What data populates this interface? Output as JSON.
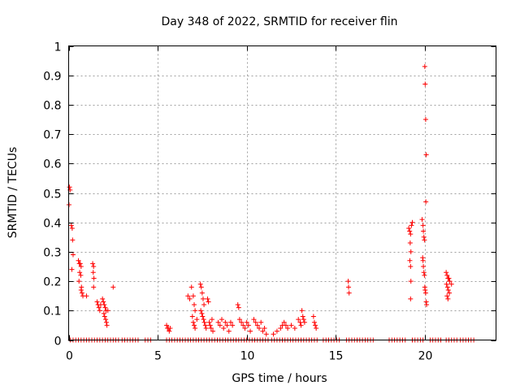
{
  "chart_data": {
    "type": "scatter",
    "title": "Day 348 of 2022, SRMTID for receiver flin",
    "xlabel": "GPS time / hours",
    "ylabel": "SRMTID / TECUs",
    "xlim": [
      0,
      24
    ],
    "ylim": [
      0,
      1
    ],
    "grid": true,
    "legend": "none",
    "marker": "plus",
    "color": "#ff0000",
    "x_ticks": [
      "0",
      "5",
      "10",
      "15",
      "20"
    ],
    "x_tick_values": [
      0,
      5,
      10,
      15,
      20
    ],
    "y_ticks": [
      "0",
      "0.1",
      "0.2",
      "0.3",
      "0.4",
      "0.5",
      "0.6",
      "0.7",
      "0.8",
      "0.9",
      "1"
    ],
    "y_tick_values": [
      0,
      0.1,
      0.2,
      0.3,
      0.4,
      0.5,
      0.6,
      0.7,
      0.8,
      0.9,
      1.0
    ],
    "series": [
      {
        "name": "SRMTID",
        "points": [
          [
            0.05,
            0.52
          ],
          [
            0.08,
            0.51
          ],
          [
            0.02,
            0.46
          ],
          [
            0.15,
            0.39
          ],
          [
            0.2,
            0.38
          ],
          [
            0.22,
            0.34
          ],
          [
            0.25,
            0.29
          ],
          [
            0.18,
            0.24
          ],
          [
            0.55,
            0.27
          ],
          [
            0.6,
            0.26
          ],
          [
            0.65,
            0.26
          ],
          [
            0.7,
            0.25
          ],
          [
            0.62,
            0.23
          ],
          [
            0.68,
            0.22
          ],
          [
            0.58,
            0.2
          ],
          [
            0.72,
            0.18
          ],
          [
            0.7,
            0.17
          ],
          [
            0.75,
            0.16
          ],
          [
            0.8,
            0.15
          ],
          [
            1.0,
            0.15
          ],
          [
            1.35,
            0.26
          ],
          [
            1.4,
            0.25
          ],
          [
            1.38,
            0.23
          ],
          [
            1.42,
            0.21
          ],
          [
            1.4,
            0.18
          ],
          [
            1.6,
            0.13
          ],
          [
            1.65,
            0.12
          ],
          [
            1.7,
            0.11
          ],
          [
            1.75,
            0.1
          ],
          [
            1.8,
            0.12
          ],
          [
            1.9,
            0.14
          ],
          [
            1.95,
            0.13
          ],
          [
            2.0,
            0.12
          ],
          [
            2.05,
            0.11
          ],
          [
            2.1,
            0.1
          ],
          [
            1.98,
            0.09
          ],
          [
            2.02,
            0.08
          ],
          [
            2.08,
            0.07
          ],
          [
            2.12,
            0.06
          ],
          [
            2.15,
            0.05
          ],
          [
            2.2,
            0.1
          ],
          [
            2.5,
            0.18
          ],
          [
            5.5,
            0.05
          ],
          [
            5.55,
            0.04
          ],
          [
            5.6,
            0.04
          ],
          [
            5.65,
            0.03
          ],
          [
            5.7,
            0.04
          ],
          [
            6.7,
            0.15
          ],
          [
            6.8,
            0.14
          ],
          [
            6.9,
            0.18
          ],
          [
            7.0,
            0.15
          ],
          [
            7.05,
            0.12
          ],
          [
            7.1,
            0.1
          ],
          [
            6.95,
            0.08
          ],
          [
            7.0,
            0.06
          ],
          [
            7.05,
            0.05
          ],
          [
            7.1,
            0.04
          ],
          [
            7.2,
            0.07
          ],
          [
            7.4,
            0.19
          ],
          [
            7.45,
            0.18
          ],
          [
            7.5,
            0.16
          ],
          [
            7.55,
            0.14
          ],
          [
            7.6,
            0.12
          ],
          [
            7.42,
            0.1
          ],
          [
            7.48,
            0.09
          ],
          [
            7.52,
            0.08
          ],
          [
            7.58,
            0.07
          ],
          [
            7.62,
            0.06
          ],
          [
            7.68,
            0.05
          ],
          [
            7.72,
            0.04
          ],
          [
            7.8,
            0.14
          ],
          [
            7.85,
            0.13
          ],
          [
            7.9,
            0.06
          ],
          [
            7.95,
            0.05
          ],
          [
            8.0,
            0.04
          ],
          [
            8.05,
            0.07
          ],
          [
            8.1,
            0.03
          ],
          [
            8.4,
            0.06
          ],
          [
            8.5,
            0.05
          ],
          [
            8.6,
            0.07
          ],
          [
            8.7,
            0.04
          ],
          [
            8.8,
            0.06
          ],
          [
            8.9,
            0.05
          ],
          [
            9.0,
            0.03
          ],
          [
            9.1,
            0.06
          ],
          [
            9.2,
            0.05
          ],
          [
            9.5,
            0.12
          ],
          [
            9.55,
            0.11
          ],
          [
            9.6,
            0.07
          ],
          [
            9.7,
            0.06
          ],
          [
            9.8,
            0.05
          ],
          [
            9.9,
            0.04
          ],
          [
            10.0,
            0.06
          ],
          [
            10.1,
            0.05
          ],
          [
            10.2,
            0.03
          ],
          [
            10.4,
            0.07
          ],
          [
            10.5,
            0.06
          ],
          [
            10.6,
            0.05
          ],
          [
            10.7,
            0.04
          ],
          [
            10.8,
            0.06
          ],
          [
            10.9,
            0.03
          ],
          [
            11.0,
            0.04
          ],
          [
            11.1,
            0.02
          ],
          [
            11.5,
            0.02
          ],
          [
            11.7,
            0.03
          ],
          [
            11.9,
            0.04
          ],
          [
            12.0,
            0.05
          ],
          [
            12.1,
            0.06
          ],
          [
            12.2,
            0.05
          ],
          [
            12.3,
            0.04
          ],
          [
            12.5,
            0.05
          ],
          [
            12.7,
            0.04
          ],
          [
            12.9,
            0.07
          ],
          [
            13.0,
            0.06
          ],
          [
            13.05,
            0.05
          ],
          [
            13.1,
            0.1
          ],
          [
            13.15,
            0.08
          ],
          [
            13.2,
            0.07
          ],
          [
            13.25,
            0.06
          ],
          [
            13.75,
            0.08
          ],
          [
            13.8,
            0.06
          ],
          [
            13.85,
            0.05
          ],
          [
            13.9,
            0.04
          ],
          [
            15.7,
            0.2
          ],
          [
            15.72,
            0.18
          ],
          [
            15.75,
            0.16
          ],
          [
            19.1,
            0.38
          ],
          [
            19.15,
            0.37
          ],
          [
            19.2,
            0.36
          ],
          [
            19.25,
            0.39
          ],
          [
            19.3,
            0.4
          ],
          [
            19.18,
            0.33
          ],
          [
            19.22,
            0.3
          ],
          [
            19.16,
            0.27
          ],
          [
            19.2,
            0.25
          ],
          [
            19.22,
            0.2
          ],
          [
            19.2,
            0.14
          ],
          [
            19.85,
            0.41
          ],
          [
            19.9,
            0.39
          ],
          [
            19.92,
            0.37
          ],
          [
            19.95,
            0.35
          ],
          [
            19.98,
            0.34
          ],
          [
            20.0,
            0.93
          ],
          [
            20.02,
            0.87
          ],
          [
            20.05,
            0.75
          ],
          [
            20.08,
            0.63
          ],
          [
            20.06,
            0.47
          ],
          [
            19.88,
            0.28
          ],
          [
            19.9,
            0.27
          ],
          [
            19.92,
            0.25
          ],
          [
            19.95,
            0.23
          ],
          [
            19.98,
            0.22
          ],
          [
            20.0,
            0.18
          ],
          [
            20.02,
            0.17
          ],
          [
            20.05,
            0.16
          ],
          [
            20.08,
            0.13
          ],
          [
            20.1,
            0.12
          ],
          [
            21.2,
            0.23
          ],
          [
            21.25,
            0.22
          ],
          [
            21.3,
            0.21
          ],
          [
            21.35,
            0.21
          ],
          [
            21.4,
            0.2
          ],
          [
            21.22,
            0.19
          ],
          [
            21.28,
            0.18
          ],
          [
            21.32,
            0.17
          ],
          [
            21.38,
            0.16
          ],
          [
            21.25,
            0.15
          ],
          [
            21.3,
            0.14
          ],
          [
            21.5,
            0.19
          ]
        ],
        "zero_runs": [
          [
            0.1,
            2.8
          ],
          [
            3.0,
            4.0
          ],
          [
            4.3,
            4.7
          ],
          [
            5.5,
            11.2
          ],
          [
            11.4,
            14.0
          ],
          [
            14.3,
            15.3
          ],
          [
            15.6,
            17.2
          ],
          [
            18.0,
            19.0
          ],
          [
            19.3,
            19.9
          ],
          [
            20.3,
            20.9
          ],
          [
            21.2,
            21.9
          ],
          [
            22.0,
            22.8
          ]
        ],
        "zero_step": 0.15
      }
    ]
  }
}
